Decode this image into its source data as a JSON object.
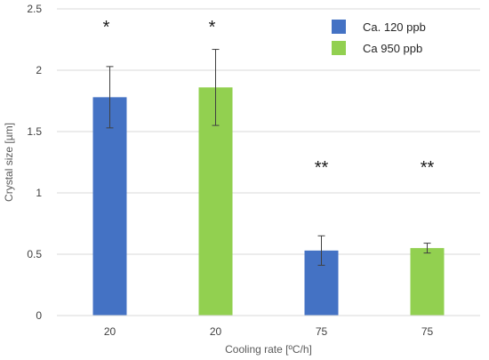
{
  "chart_data": {
    "type": "bar",
    "categories": [
      "20",
      "20",
      "75",
      "75"
    ],
    "values": [
      1.78,
      1.86,
      0.53,
      0.55
    ],
    "errors": [
      0.25,
      0.31,
      0.12,
      0.04
    ],
    "bar_series": [
      0,
      1,
      0,
      1
    ],
    "significance": [
      "*",
      "*",
      "**",
      "**"
    ],
    "series": [
      {
        "name": "Ca.  120 ppb",
        "color": "#4472c4"
      },
      {
        "name": "Ca   950 ppb",
        "color": "#92d050"
      }
    ],
    "xlabel": "Cooling rate [ºC/h]",
    "ylabel": "Crystal size [µm]",
    "ylim": [
      0,
      2.5
    ],
    "yticks": [
      "0",
      "0.5",
      "1",
      "1.5",
      "2",
      "2.5"
    ],
    "grid": true,
    "legend_position": "top-right"
  }
}
